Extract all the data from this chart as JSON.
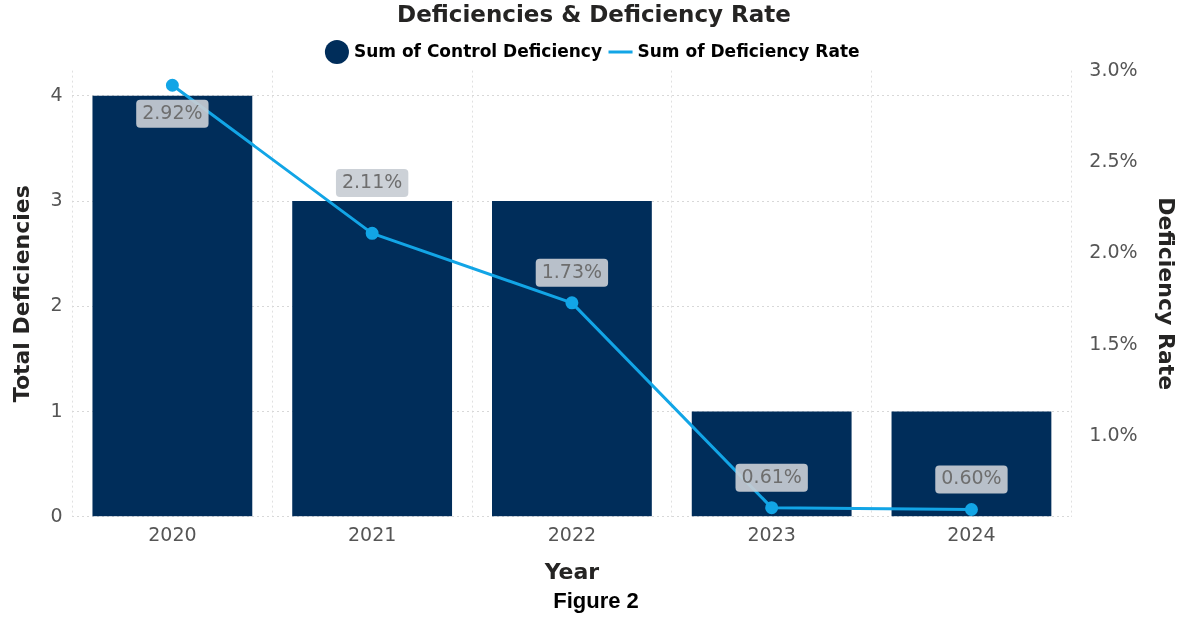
{
  "chart_data": {
    "type": "bar",
    "title": "Deficiencies & Deficiency Rate",
    "xlabel": "Year",
    "ylabel": "Total Deficiencies",
    "y2label": "Deficiency Rate",
    "categories": [
      "2020",
      "2021",
      "2022",
      "2023",
      "2024"
    ],
    "series": [
      {
        "name": "Sum of Control Deficiency",
        "color": "#002d5a",
        "values": [
          4,
          3,
          3,
          1,
          1
        ]
      },
      {
        "name": "Sum of Deficiency Rate",
        "type": "line",
        "axis": "y2",
        "color": "#12a5e6",
        "values": [
          2.92,
          2.11,
          1.73,
          0.61,
          0.6
        ],
        "value_labels": [
          "2.92%",
          "2.11%",
          "1.73%",
          "0.61%",
          "0.60%"
        ]
      }
    ],
    "ylim": [
      0,
      4.24
    ],
    "yticks": [
      0,
      1,
      2,
      3,
      4
    ],
    "y2lim": [
      0.56,
      3.0
    ],
    "y2ticks": [
      {
        "value": 1.0,
        "label": "1.0%"
      },
      {
        "value": 1.5,
        "label": "1.5%"
      },
      {
        "value": 2.0,
        "label": "2.0%"
      },
      {
        "value": 2.5,
        "label": "2.5%"
      },
      {
        "value": 3.0,
        "label": "3.0%"
      }
    ],
    "grid": true,
    "legend": "top",
    "marker": "circle",
    "annotations": [
      "Figure 2"
    ]
  }
}
